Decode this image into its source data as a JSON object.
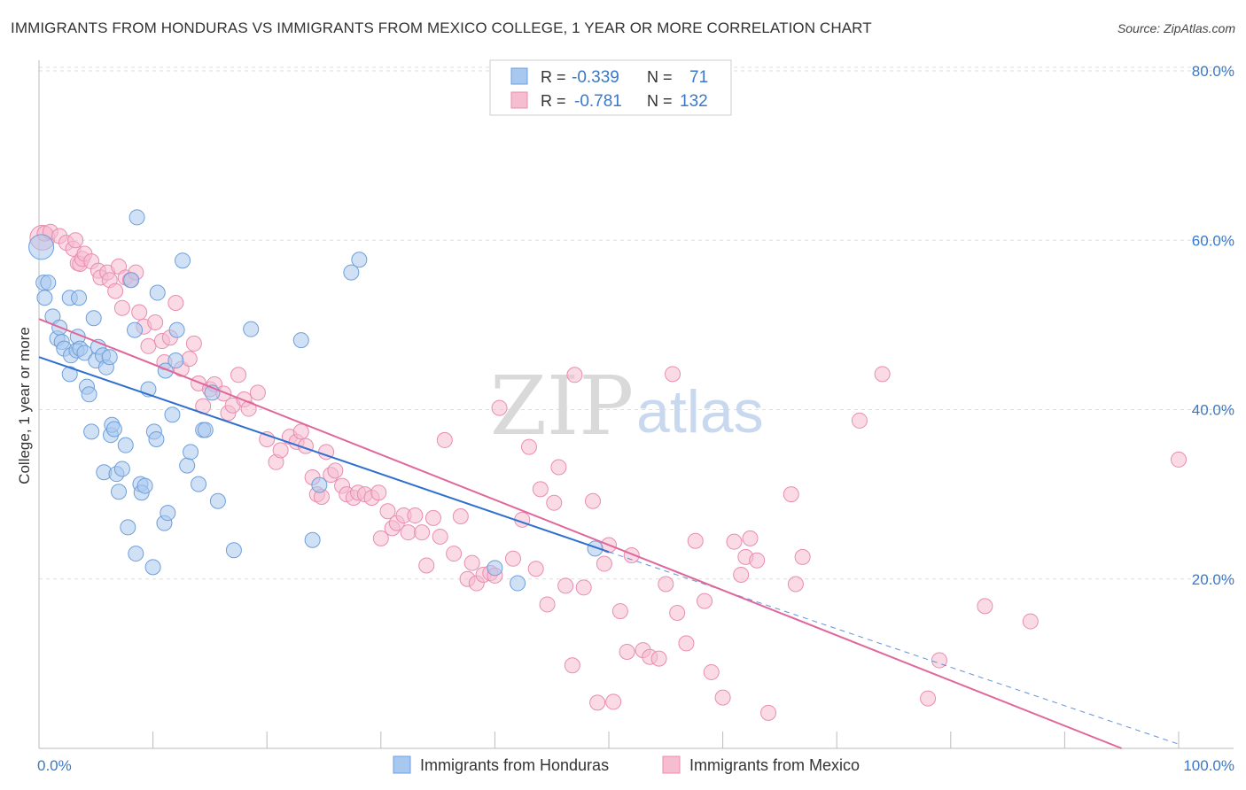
{
  "title": "IMMIGRANTS FROM HONDURAS VS IMMIGRANTS FROM MEXICO COLLEGE, 1 YEAR OR MORE CORRELATION CHART",
  "source": "Source: ZipAtlas.com",
  "watermark": {
    "zip": "ZIP",
    "atlas": "atlas"
  },
  "legend": {
    "rows": [
      {
        "r_label": "R =",
        "r_value": "-0.339",
        "n_label": "N =",
        "n_value": "71"
      },
      {
        "r_label": "R =",
        "r_value": "-0.781",
        "n_label": "N =",
        "n_value": "132"
      }
    ]
  },
  "bottom_legend": [
    "Immigrants from Honduras",
    "Immigrants from Mexico"
  ],
  "colors": {
    "honduras_fill": "#a9c8ef",
    "honduras_stroke": "#6d9fdc",
    "honduras_line": "#2f6fcf",
    "mexico_fill": "#f6bcd0",
    "mexico_stroke": "#e98db0",
    "mexico_line": "#e0679a",
    "tick_label": "#3a78c9",
    "grid": "#dddddd"
  },
  "chart_data": {
    "type": "scatter",
    "title": "IMMIGRANTS FROM HONDURAS VS IMMIGRANTS FROM MEXICO COLLEGE, 1 YEAR OR MORE CORRELATION CHART",
    "xlabel": "",
    "ylabel": "College, 1 year or more",
    "xlim": [
      0,
      100
    ],
    "ylim": [
      0,
      80
    ],
    "x_tick_labels": [
      "0.0%",
      "100.0%"
    ],
    "y_ticks": [
      20,
      40,
      60,
      80
    ],
    "y_tick_labels": [
      "20.0%",
      "40.0%",
      "60.0%",
      "80.0%"
    ],
    "grid": "horizontal dashed",
    "legend_position": "top-center",
    "series": [
      {
        "name": "Immigrants from Honduras",
        "r": -0.339,
        "n": 71,
        "trend": {
          "x0": 0,
          "y0": 46.2,
          "x1": 50,
          "y1": 23.2,
          "dashed_to_x": 100,
          "dashed_to_y": 0.5
        },
        "points": [
          [
            0.2,
            59.2
          ],
          [
            0.4,
            55.0
          ],
          [
            0.5,
            53.2
          ],
          [
            0.8,
            55.0
          ],
          [
            1.2,
            51.0
          ],
          [
            1.6,
            48.4
          ],
          [
            1.8,
            49.7
          ],
          [
            2.0,
            48.0
          ],
          [
            2.2,
            47.2
          ],
          [
            2.7,
            53.2
          ],
          [
            2.7,
            44.2
          ],
          [
            2.8,
            46.4
          ],
          [
            3.3,
            47.0
          ],
          [
            3.4,
            48.6
          ],
          [
            3.5,
            53.2
          ],
          [
            3.6,
            47.2
          ],
          [
            4.0,
            46.7
          ],
          [
            4.2,
            42.7
          ],
          [
            4.4,
            41.8
          ],
          [
            4.6,
            37.4
          ],
          [
            4.8,
            50.8
          ],
          [
            5.0,
            45.8
          ],
          [
            5.2,
            47.4
          ],
          [
            5.6,
            46.4
          ],
          [
            5.7,
            32.6
          ],
          [
            5.9,
            45.0
          ],
          [
            6.2,
            46.2
          ],
          [
            6.3,
            37.0
          ],
          [
            6.4,
            38.2
          ],
          [
            6.6,
            37.7
          ],
          [
            6.8,
            32.4
          ],
          [
            7.0,
            30.3
          ],
          [
            7.3,
            33.0
          ],
          [
            7.6,
            35.8
          ],
          [
            7.8,
            26.1
          ],
          [
            8.1,
            55.3
          ],
          [
            8.4,
            49.4
          ],
          [
            8.5,
            23.0
          ],
          [
            8.6,
            62.7
          ],
          [
            8.9,
            31.2
          ],
          [
            9.0,
            30.2
          ],
          [
            9.3,
            31.0
          ],
          [
            9.6,
            42.4
          ],
          [
            10.0,
            21.4
          ],
          [
            10.1,
            37.4
          ],
          [
            10.3,
            36.5
          ],
          [
            10.4,
            53.8
          ],
          [
            11.0,
            26.6
          ],
          [
            11.1,
            44.6
          ],
          [
            11.3,
            27.8
          ],
          [
            11.7,
            39.4
          ],
          [
            12.0,
            45.8
          ],
          [
            12.1,
            49.4
          ],
          [
            12.6,
            57.6
          ],
          [
            13.0,
            33.4
          ],
          [
            13.3,
            35.0
          ],
          [
            14.0,
            31.2
          ],
          [
            14.4,
            37.6
          ],
          [
            14.6,
            37.6
          ],
          [
            15.2,
            42.0
          ],
          [
            15.7,
            29.2
          ],
          [
            17.1,
            23.4
          ],
          [
            18.6,
            49.5
          ],
          [
            23.0,
            48.2
          ],
          [
            24.0,
            24.6
          ],
          [
            24.6,
            31.1
          ],
          [
            27.4,
            56.2
          ],
          [
            28.1,
            57.7
          ],
          [
            40.0,
            21.3
          ],
          [
            48.8,
            23.6
          ],
          [
            42.0,
            19.5
          ]
        ]
      },
      {
        "name": "Immigrants from Mexico",
        "r": -0.781,
        "n": 132,
        "trend": {
          "x0": 0,
          "y0": 50.7,
          "x1": 95,
          "y1": 0
        },
        "points": [
          [
            0.3,
            60.3
          ],
          [
            0.5,
            60.8
          ],
          [
            1.0,
            61.0
          ],
          [
            1.8,
            60.5
          ],
          [
            2.4,
            59.7
          ],
          [
            3.0,
            59.0
          ],
          [
            3.2,
            60.0
          ],
          [
            3.4,
            57.3
          ],
          [
            3.6,
            57.2
          ],
          [
            3.8,
            57.8
          ],
          [
            4.0,
            58.4
          ],
          [
            4.6,
            57.5
          ],
          [
            5.2,
            56.4
          ],
          [
            5.4,
            55.6
          ],
          [
            6.0,
            56.2
          ],
          [
            6.2,
            55.3
          ],
          [
            6.7,
            54.0
          ],
          [
            7.0,
            56.9
          ],
          [
            7.3,
            52.0
          ],
          [
            7.6,
            55.6
          ],
          [
            8.0,
            55.3
          ],
          [
            8.5,
            56.2
          ],
          [
            8.8,
            51.5
          ],
          [
            9.2,
            49.8
          ],
          [
            9.6,
            47.5
          ],
          [
            10.2,
            50.3
          ],
          [
            10.8,
            48.1
          ],
          [
            11.0,
            45.6
          ],
          [
            11.5,
            48.5
          ],
          [
            12.0,
            52.6
          ],
          [
            12.5,
            44.8
          ],
          [
            13.2,
            46.0
          ],
          [
            13.6,
            47.8
          ],
          [
            14.0,
            43.1
          ],
          [
            14.4,
            40.4
          ],
          [
            15.0,
            42.4
          ],
          [
            15.4,
            43.0
          ],
          [
            16.2,
            41.9
          ],
          [
            16.6,
            39.6
          ],
          [
            17.0,
            40.5
          ],
          [
            17.5,
            44.1
          ],
          [
            18.0,
            41.2
          ],
          [
            18.4,
            40.1
          ],
          [
            19.2,
            42.0
          ],
          [
            20.0,
            36.5
          ],
          [
            20.8,
            33.8
          ],
          [
            21.2,
            35.2
          ],
          [
            22.0,
            36.8
          ],
          [
            22.6,
            36.2
          ],
          [
            23.0,
            37.4
          ],
          [
            23.4,
            35.7
          ],
          [
            24.0,
            32.0
          ],
          [
            24.4,
            30.0
          ],
          [
            24.8,
            29.7
          ],
          [
            25.2,
            35.0
          ],
          [
            25.6,
            32.3
          ],
          [
            26.0,
            32.8
          ],
          [
            26.6,
            31.0
          ],
          [
            27.0,
            30.0
          ],
          [
            27.6,
            29.6
          ],
          [
            28.0,
            30.2
          ],
          [
            28.6,
            30.0
          ],
          [
            29.2,
            29.6
          ],
          [
            29.8,
            30.2
          ],
          [
            30.0,
            24.8
          ],
          [
            30.6,
            28.0
          ],
          [
            31.0,
            26.0
          ],
          [
            31.4,
            26.6
          ],
          [
            32.0,
            27.5
          ],
          [
            32.4,
            25.5
          ],
          [
            33.0,
            27.5
          ],
          [
            33.6,
            25.5
          ],
          [
            34.0,
            21.6
          ],
          [
            34.6,
            27.2
          ],
          [
            35.2,
            25.0
          ],
          [
            35.6,
            36.4
          ],
          [
            36.4,
            23.0
          ],
          [
            37.0,
            27.4
          ],
          [
            37.6,
            20.0
          ],
          [
            38.0,
            21.9
          ],
          [
            38.4,
            19.5
          ],
          [
            39.0,
            20.5
          ],
          [
            39.6,
            20.7
          ],
          [
            40.0,
            20.4
          ],
          [
            40.4,
            40.2
          ],
          [
            41.6,
            22.4
          ],
          [
            42.4,
            27.0
          ],
          [
            43.0,
            35.6
          ],
          [
            43.6,
            21.2
          ],
          [
            44.0,
            30.6
          ],
          [
            44.6,
            17.0
          ],
          [
            45.2,
            29.0
          ],
          [
            45.6,
            33.2
          ],
          [
            46.2,
            19.2
          ],
          [
            46.8,
            9.8
          ],
          [
            47.0,
            44.1
          ],
          [
            47.8,
            19.0
          ],
          [
            48.6,
            29.2
          ],
          [
            49.0,
            5.4
          ],
          [
            49.6,
            21.8
          ],
          [
            50.0,
            24.0
          ],
          [
            50.4,
            5.5
          ],
          [
            51.0,
            16.2
          ],
          [
            51.6,
            11.4
          ],
          [
            52.0,
            22.8
          ],
          [
            53.0,
            11.6
          ],
          [
            53.6,
            10.8
          ],
          [
            54.4,
            10.6
          ],
          [
            55.0,
            19.4
          ],
          [
            55.6,
            44.2
          ],
          [
            56.0,
            16.0
          ],
          [
            56.8,
            12.4
          ],
          [
            57.6,
            24.5
          ],
          [
            58.4,
            17.4
          ],
          [
            59.0,
            9.0
          ],
          [
            60.0,
            6.0
          ],
          [
            61.0,
            24.4
          ],
          [
            61.6,
            20.5
          ],
          [
            62.0,
            22.6
          ],
          [
            62.4,
            24.8
          ],
          [
            63.0,
            22.2
          ],
          [
            64.0,
            4.2
          ],
          [
            66.0,
            30.0
          ],
          [
            66.4,
            19.4
          ],
          [
            67.0,
            22.6
          ],
          [
            72.0,
            38.7
          ],
          [
            74.0,
            44.2
          ],
          [
            78.0,
            5.9
          ],
          [
            79.0,
            10.4
          ],
          [
            83.0,
            16.8
          ],
          [
            87.0,
            15.0
          ],
          [
            100.0,
            34.1
          ]
        ]
      }
    ]
  }
}
